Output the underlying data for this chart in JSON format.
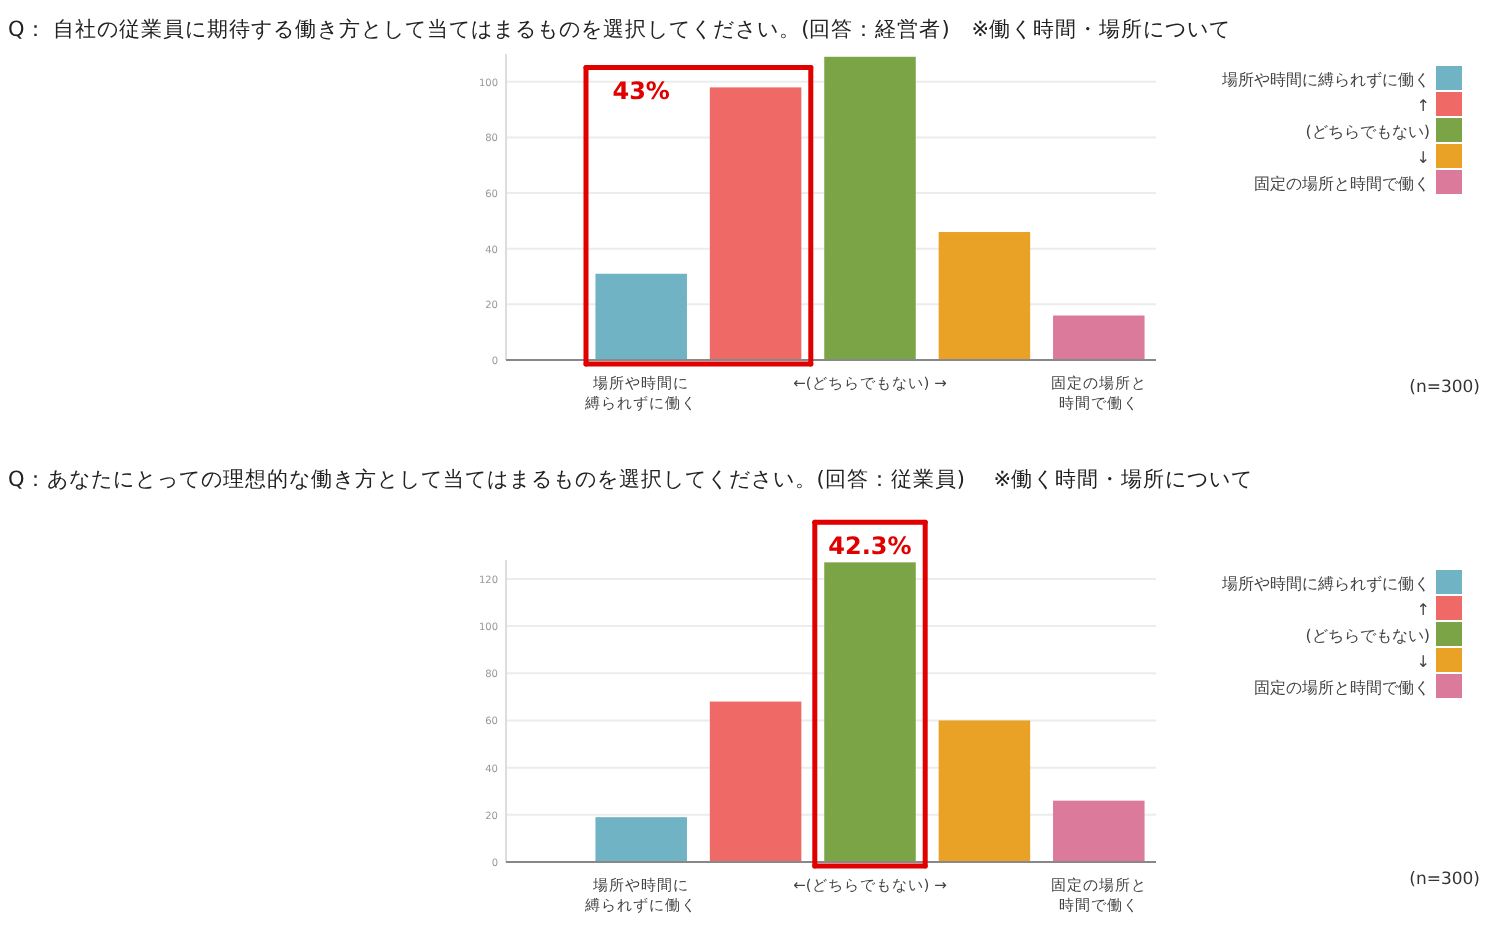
{
  "chart_data": [
    {
      "type": "bar",
      "title": "Q： 自社の従業員に期待する働き方として当てはまるものを選択してください。(回答：経営者)　※働く時間・場所について",
      "categories": [
        "場所や時間に縛られずに働く",
        null,
        "←(どちらでもない) →",
        null,
        "固定の場所と時間で働く"
      ],
      "series": [
        {
          "name": "場所や時間に縛られずに働く",
          "color": "#6fb3c4",
          "values": [
            31,
            null,
            null,
            null,
            null
          ]
        },
        {
          "name": "↑",
          "color": "#ef6a66",
          "values": [
            null,
            98,
            null,
            null,
            null
          ]
        },
        {
          "name": "(どちらでもない)",
          "color": "#7ba446",
          "values": [
            null,
            null,
            109,
            null,
            null
          ]
        },
        {
          "name": "↓",
          "color": "#e9a226",
          "values": [
            null,
            null,
            null,
            46,
            null
          ]
        },
        {
          "name": "固定の場所と時間で働く",
          "color": "#db7a9b",
          "values": [
            null,
            null,
            null,
            null,
            16
          ]
        }
      ],
      "ylim": [
        0,
        110
      ],
      "yticks": [
        0,
        20,
        40,
        60,
        80,
        100
      ],
      "grid": "y",
      "legend": "right",
      "annotations": [
        "43%",
        "(n=300)"
      ]
    },
    {
      "type": "bar",
      "title": "Q：あなたにとっての理想的な働き方として当てはまるものを選択してください。(回答：従業員)　 ※働く時間・場所について",
      "categories": [
        "場所や時間に縛られずに働く",
        null,
        "←(どちらでもない) →",
        null,
        "固定の場所と時間で働く"
      ],
      "series": [
        {
          "name": "場所や時間に縛られずに働く",
          "color": "#6fb3c4",
          "values": [
            19,
            null,
            null,
            null,
            null
          ]
        },
        {
          "name": "↑",
          "color": "#ef6a66",
          "values": [
            null,
            68,
            null,
            null,
            null
          ]
        },
        {
          "name": "(どちらでもない)",
          "color": "#7ba446",
          "values": [
            null,
            null,
            127,
            null,
            null
          ]
        },
        {
          "name": "↓",
          "color": "#e9a226",
          "values": [
            null,
            null,
            null,
            60,
            null
          ]
        },
        {
          "name": "固定の場所と時間で働く",
          "color": "#db7a9b",
          "values": [
            null,
            null,
            null,
            null,
            26
          ]
        }
      ],
      "ylim": [
        0,
        128
      ],
      "yticks": [
        0,
        20,
        40,
        60,
        80,
        100,
        120
      ],
      "grid": "y",
      "legend": "right",
      "annotations": [
        {
          "text": "42.3%",
          "x": "←(どちらでもない) →",
          "y": 127
        },
        "(n=300)"
      ]
    }
  ]
}
